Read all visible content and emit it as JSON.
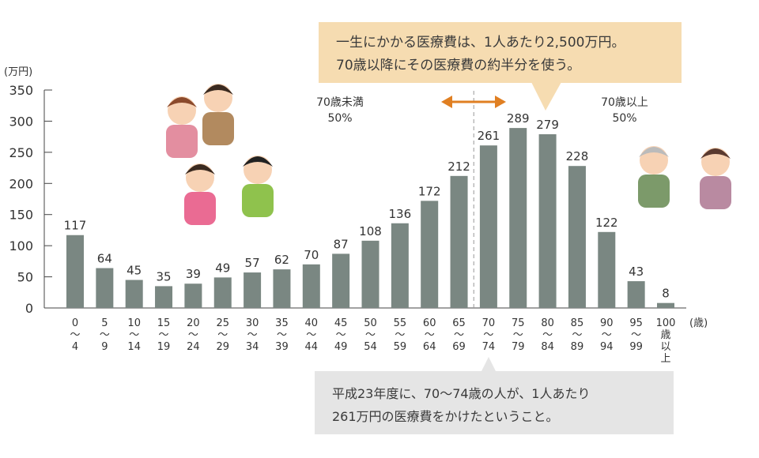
{
  "chart_data": {
    "type": "bar",
    "ylabel": "(万円)",
    "xlabel": "(歳)",
    "ylim": [
      0,
      350
    ],
    "yticks": [
      0,
      50,
      100,
      150,
      200,
      250,
      300,
      350
    ],
    "categories": [
      [
        "0",
        "〜",
        "4"
      ],
      [
        "5",
        "〜",
        "9"
      ],
      [
        "10",
        "〜",
        "14"
      ],
      [
        "15",
        "〜",
        "19"
      ],
      [
        "20",
        "〜",
        "24"
      ],
      [
        "25",
        "〜",
        "29"
      ],
      [
        "30",
        "〜",
        "34"
      ],
      [
        "35",
        "〜",
        "39"
      ],
      [
        "40",
        "〜",
        "44"
      ],
      [
        "45",
        "〜",
        "49"
      ],
      [
        "50",
        "〜",
        "54"
      ],
      [
        "55",
        "〜",
        "59"
      ],
      [
        "60",
        "〜",
        "64"
      ],
      [
        "65",
        "〜",
        "69"
      ],
      [
        "70",
        "〜",
        "74"
      ],
      [
        "75",
        "〜",
        "79"
      ],
      [
        "80",
        "〜",
        "84"
      ],
      [
        "85",
        "〜",
        "89"
      ],
      [
        "90",
        "〜",
        "94"
      ],
      [
        "95",
        "〜",
        "99"
      ],
      [
        "100",
        "歳",
        "以",
        "上"
      ]
    ],
    "values": [
      117,
      64,
      45,
      35,
      39,
      49,
      57,
      62,
      70,
      87,
      108,
      136,
      172,
      212,
      261,
      289,
      279,
      228,
      122,
      43,
      8
    ],
    "bar_color": "#7a8782",
    "divider_after_index": 13,
    "annotations": {
      "under70": [
        "70歳未満",
        "50%"
      ],
      "over70": [
        "70歳以上",
        "50%"
      ]
    },
    "arrow_color": "#e07f22"
  },
  "callout_top": [
    "一生にかかる医療費は、1人あたり2,500万円。",
    "70歳以降にその医療費の約半分を使う。"
  ],
  "callout_bottom": [
    "平成23年度に、70〜74歳の人が、1人あたり",
    "261万円の医療費をかけたということ。"
  ]
}
